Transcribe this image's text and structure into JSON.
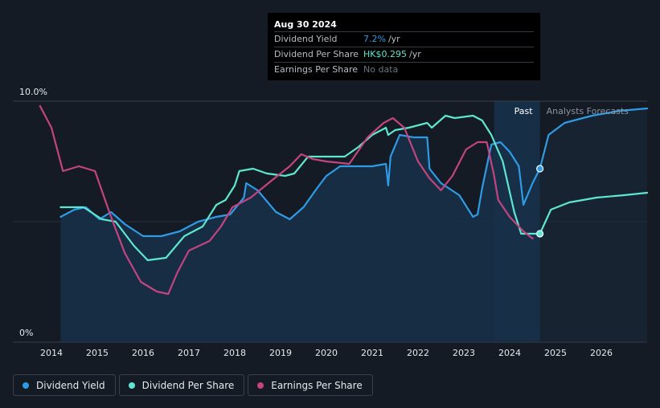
{
  "tooltip": {
    "date": "Aug 30 2024",
    "rows": [
      {
        "label": "Dividend Yield",
        "value": "7.2%",
        "unit": "/yr",
        "color": "#2f9be6"
      },
      {
        "label": "Dividend Per Share",
        "value": "HK$0.295",
        "unit": "/yr",
        "color": "#5ee6d0"
      },
      {
        "label": "Earnings Per Share",
        "value": "No data",
        "unit": "",
        "color": "#6b737d"
      }
    ]
  },
  "colors": {
    "background": "#151b24",
    "dividend_yield": "#2f9be6",
    "dividend_per_share": "#5ee6d0",
    "earnings_per_share": "#c3447f",
    "forecast_band": "#16314a",
    "area_fill": "#173049"
  },
  "regions": {
    "past_label": "Past",
    "forecast_label": "Analysts Forecasts"
  },
  "legend": [
    {
      "label": "Dividend Yield",
      "color": "#2f9be6"
    },
    {
      "label": "Dividend Per Share",
      "color": "#5ee6d0"
    },
    {
      "label": "Earnings Per Share",
      "color": "#c3447f"
    }
  ],
  "chart_data": {
    "type": "line",
    "title": "",
    "xlabel": "",
    "ylabel": "",
    "y_tick_labels": [
      "10.0%",
      "0%"
    ],
    "x_tick_labels": [
      "2014",
      "2015",
      "2016",
      "2017",
      "2018",
      "2019",
      "2020",
      "2021",
      "2022",
      "2023",
      "2024",
      "2025",
      "2026"
    ],
    "xlim": [
      2013.0,
      2027.0
    ],
    "ylim": [
      0,
      10.0
    ],
    "past_end": 2024.66,
    "forecast_band_start": 2023.66,
    "grid": "horizontal",
    "legend_position": "bottom-left",
    "series": [
      {
        "name": "Dividend Yield",
        "key": "dividend_yield",
        "area": true,
        "values": [
          [
            2014.2,
            5.2
          ],
          [
            2014.5,
            5.5
          ],
          [
            2014.75,
            5.6
          ],
          [
            2015.05,
            5.1
          ],
          [
            2015.3,
            5.4
          ],
          [
            2015.6,
            4.9
          ],
          [
            2016.0,
            4.4
          ],
          [
            2016.4,
            4.4
          ],
          [
            2016.8,
            4.6
          ],
          [
            2017.2,
            5.0
          ],
          [
            2017.6,
            5.2
          ],
          [
            2017.9,
            5.3
          ],
          [
            2018.2,
            6.0
          ],
          [
            2018.25,
            6.6
          ],
          [
            2018.5,
            6.3
          ],
          [
            2018.9,
            5.4
          ],
          [
            2019.2,
            5.1
          ],
          [
            2019.5,
            5.6
          ],
          [
            2019.8,
            6.4
          ],
          [
            2020.0,
            6.9
          ],
          [
            2020.3,
            7.3
          ],
          [
            2020.6,
            7.3
          ],
          [
            2021.0,
            7.3
          ],
          [
            2021.3,
            7.4
          ],
          [
            2021.35,
            6.5
          ],
          [
            2021.4,
            7.7
          ],
          [
            2021.6,
            8.6
          ],
          [
            2021.9,
            8.5
          ],
          [
            2022.2,
            8.5
          ],
          [
            2022.25,
            7.2
          ],
          [
            2022.5,
            6.6
          ],
          [
            2022.9,
            6.1
          ],
          [
            2023.2,
            5.2
          ],
          [
            2023.3,
            5.3
          ],
          [
            2023.4,
            6.4
          ],
          [
            2023.6,
            8.2
          ],
          [
            2023.8,
            8.3
          ],
          [
            2024.0,
            7.9
          ],
          [
            2024.2,
            7.3
          ],
          [
            2024.3,
            5.7
          ],
          [
            2024.5,
            6.6
          ],
          [
            2024.66,
            7.2
          ]
        ]
      },
      {
        "name": "Dividend Yield (forecast)",
        "key": "dividend_yield",
        "dashed": false,
        "values": [
          [
            2024.66,
            7.2
          ],
          [
            2024.85,
            8.6
          ],
          [
            2025.2,
            9.1
          ],
          [
            2025.8,
            9.4
          ],
          [
            2026.4,
            9.6
          ],
          [
            2027.0,
            9.7
          ]
        ]
      },
      {
        "name": "Dividend Per Share",
        "key": "dividend_per_share",
        "values": [
          [
            2014.2,
            5.6
          ],
          [
            2014.7,
            5.6
          ],
          [
            2015.1,
            5.1
          ],
          [
            2015.4,
            5.0
          ],
          [
            2015.8,
            4.0
          ],
          [
            2016.1,
            3.4
          ],
          [
            2016.5,
            3.5
          ],
          [
            2016.9,
            4.4
          ],
          [
            2017.3,
            4.8
          ],
          [
            2017.6,
            5.7
          ],
          [
            2017.8,
            5.9
          ],
          [
            2018.0,
            6.5
          ],
          [
            2018.1,
            7.1
          ],
          [
            2018.4,
            7.2
          ],
          [
            2018.7,
            7.0
          ],
          [
            2019.1,
            6.9
          ],
          [
            2019.3,
            7.0
          ],
          [
            2019.6,
            7.7
          ],
          [
            2020.0,
            7.7
          ],
          [
            2020.4,
            7.7
          ],
          [
            2020.7,
            8.1
          ],
          [
            2021.0,
            8.6
          ],
          [
            2021.3,
            8.9
          ],
          [
            2021.35,
            8.6
          ],
          [
            2021.5,
            8.8
          ],
          [
            2021.8,
            8.9
          ],
          [
            2022.2,
            9.1
          ],
          [
            2022.3,
            8.9
          ],
          [
            2022.6,
            9.4
          ],
          [
            2022.8,
            9.3
          ],
          [
            2023.2,
            9.4
          ],
          [
            2023.4,
            9.2
          ],
          [
            2023.6,
            8.6
          ],
          [
            2023.85,
            7.5
          ],
          [
            2024.1,
            5.4
          ],
          [
            2024.25,
            4.5
          ],
          [
            2024.66,
            4.5
          ]
        ]
      },
      {
        "name": "Dividend Per Share (forecast)",
        "key": "dividend_per_share",
        "values": [
          [
            2024.66,
            4.5
          ],
          [
            2024.9,
            5.5
          ],
          [
            2025.3,
            5.8
          ],
          [
            2025.9,
            6.0
          ],
          [
            2026.5,
            6.1
          ],
          [
            2027.0,
            6.2
          ]
        ]
      },
      {
        "name": "Earnings Per Share",
        "key": "earnings_per_share",
        "values": [
          [
            2013.75,
            9.8
          ],
          [
            2014.0,
            8.9
          ],
          [
            2014.25,
            7.1
          ],
          [
            2014.6,
            7.3
          ],
          [
            2014.95,
            7.1
          ],
          [
            2015.3,
            5.2
          ],
          [
            2015.6,
            3.7
          ],
          [
            2015.95,
            2.5
          ],
          [
            2016.3,
            2.1
          ],
          [
            2016.55,
            2.0
          ],
          [
            2016.75,
            2.9
          ],
          [
            2017.0,
            3.8
          ],
          [
            2017.45,
            4.2
          ],
          [
            2017.7,
            4.8
          ],
          [
            2017.95,
            5.6
          ],
          [
            2018.35,
            6.0
          ],
          [
            2018.8,
            6.7
          ],
          [
            2019.2,
            7.3
          ],
          [
            2019.45,
            7.8
          ],
          [
            2019.7,
            7.6
          ],
          [
            2020.0,
            7.5
          ],
          [
            2020.5,
            7.4
          ],
          [
            2020.9,
            8.5
          ],
          [
            2021.25,
            9.1
          ],
          [
            2021.45,
            9.3
          ],
          [
            2021.7,
            8.9
          ],
          [
            2022.0,
            7.5
          ],
          [
            2022.25,
            6.8
          ],
          [
            2022.5,
            6.3
          ],
          [
            2022.75,
            6.9
          ],
          [
            2023.05,
            8.0
          ],
          [
            2023.3,
            8.3
          ],
          [
            2023.5,
            8.3
          ],
          [
            2023.65,
            7.0
          ],
          [
            2023.75,
            5.9
          ],
          [
            2024.0,
            5.2
          ],
          [
            2024.3,
            4.6
          ],
          [
            2024.5,
            4.3
          ]
        ]
      }
    ]
  }
}
